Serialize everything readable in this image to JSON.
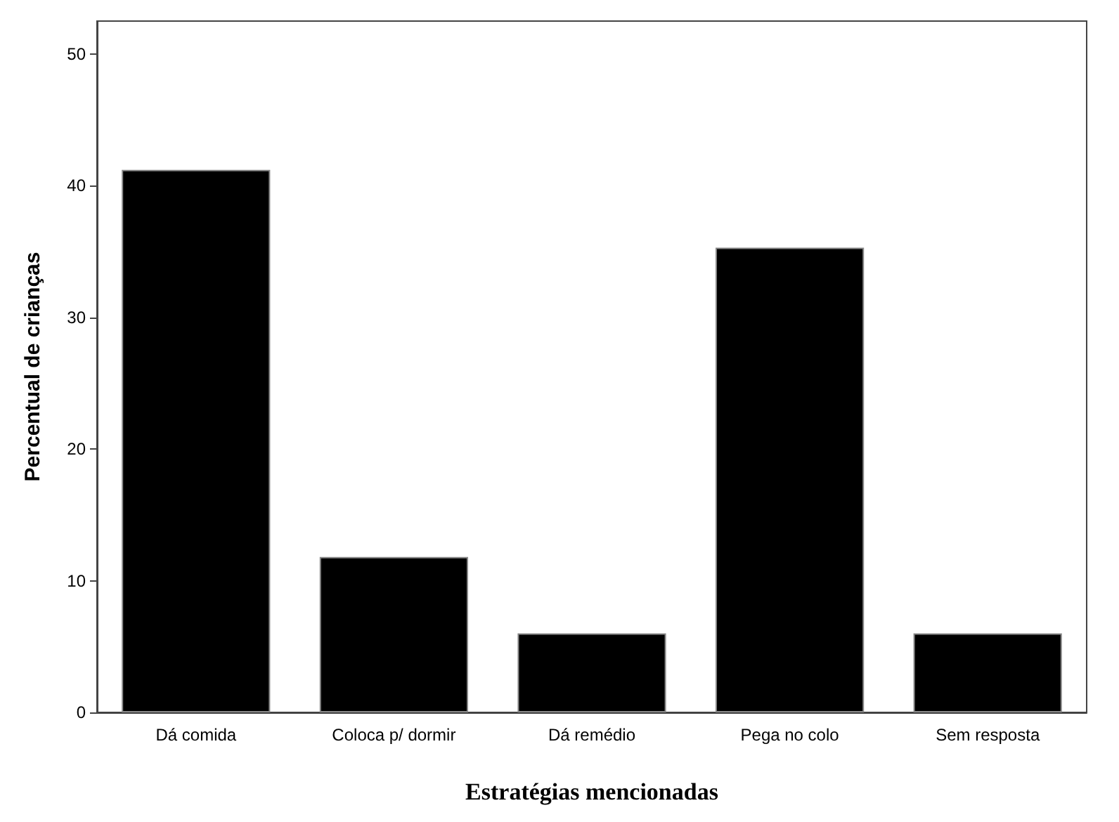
{
  "chart_data": {
    "type": "bar",
    "xlabel": "Estratégias mencionadas",
    "ylabel": "Percentual de crianças",
    "categories": [
      "Dá comida",
      "Coloca p/ dormir",
      "Dá remédio",
      "Pega no colo",
      "Sem resposta"
    ],
    "values": [
      41.2,
      11.8,
      6.0,
      35.3,
      6.0
    ],
    "color": "#000000",
    "ylim": [
      0,
      52.5
    ],
    "yticks": [
      0,
      10,
      20,
      30,
      40,
      50
    ],
    "grid": false
  }
}
